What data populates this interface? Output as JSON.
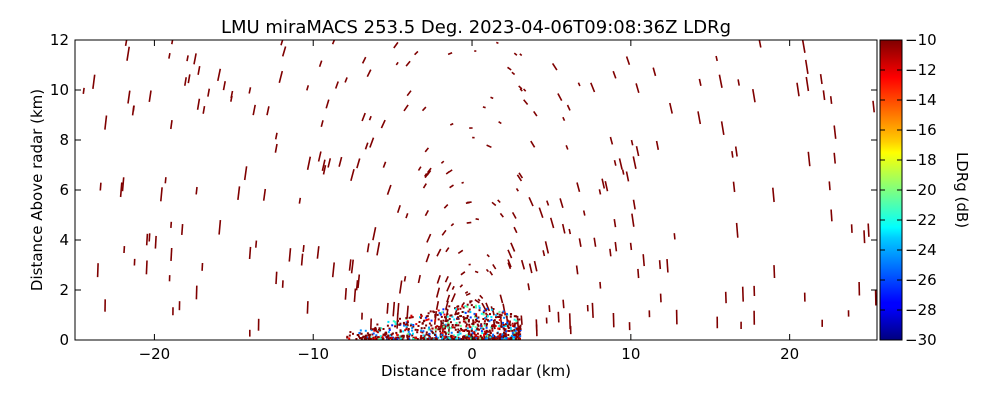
{
  "chart_data": {
    "type": "heatmap",
    "title": "LMU miraMACS 253.5 Deg. 2023-04-06T09:08:36Z  LDRg",
    "xlabel": "Distance from radar (km)",
    "ylabel": "Distance Above radar  (km)",
    "xlim": [
      -25,
      25.5
    ],
    "ylim": [
      0,
      12
    ],
    "xticks": [
      -20,
      -10,
      0,
      10,
      20
    ],
    "yticks": [
      0,
      2,
      4,
      6,
      8,
      10,
      12
    ],
    "grid": false,
    "colorbar": {
      "label": "LDRg (dB)",
      "min": -30,
      "max": -10,
      "ticks": [
        -10,
        -12,
        -14,
        -16,
        -18,
        -20,
        -22,
        -24,
        -26,
        -28,
        -30
      ]
    },
    "dominant_value_db": -10,
    "clutter_region": {
      "x_range_km": [
        -8,
        3
      ],
      "y_range_km": [
        0,
        1.5
      ]
    }
  }
}
